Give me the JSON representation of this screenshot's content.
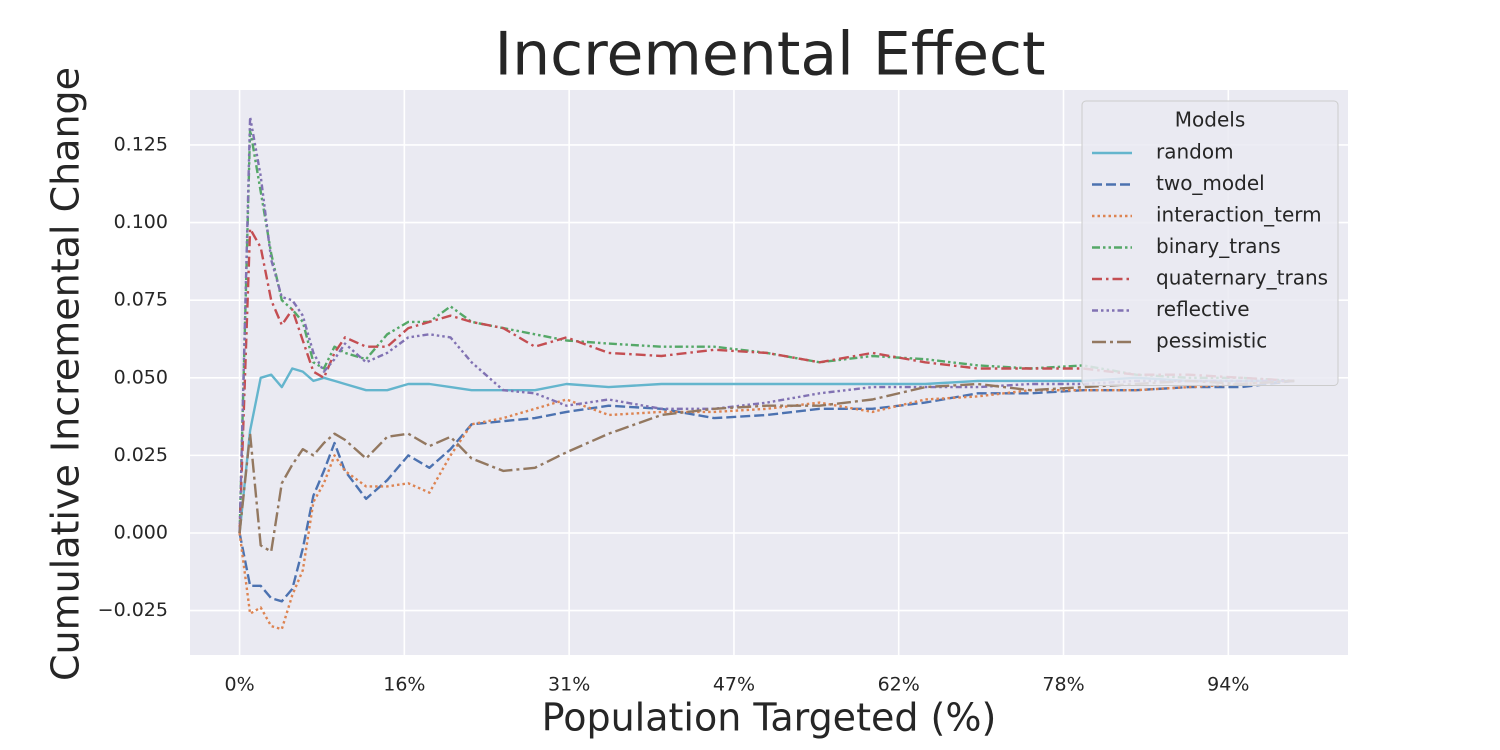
{
  "chart_data": {
    "type": "line",
    "title": "Incremental Effect",
    "xlabel": "Population Targeted (%)",
    "ylabel": "Cumulative Incremental Change",
    "legend_title": "Models",
    "legend": "upper right",
    "grid": true,
    "background": "#eaeaf2",
    "x": [
      0,
      1,
      2,
      3,
      4,
      5,
      6,
      7,
      8,
      9,
      10,
      12,
      14,
      16,
      18,
      20,
      22,
      25,
      28,
      31,
      35,
      40,
      45,
      50,
      55,
      60,
      65,
      70,
      75,
      80,
      85,
      90,
      95,
      100
    ],
    "xlim": [
      -4.7,
      105.1
    ],
    "xticks": [
      {
        "value": 0,
        "label": "0%"
      },
      {
        "value": 15.625,
        "label": "16%"
      },
      {
        "value": 31.25,
        "label": "31%"
      },
      {
        "value": 46.875,
        "label": "47%"
      },
      {
        "value": 62.5,
        "label": "62%"
      },
      {
        "value": 78.125,
        "label": "78%"
      },
      {
        "value": 93.75,
        "label": "94%"
      }
    ],
    "ylim": [
      -0.0393,
      0.1427
    ],
    "yticks": [
      {
        "value": -0.025,
        "label": "−0.025"
      },
      {
        "value": 0,
        "label": "0.000"
      },
      0.025,
      {
        "value": 0.05,
        "label": "0.050"
      },
      0.075,
      {
        "value": 0.1,
        "label": "0.100"
      },
      0.125
    ],
    "series": [
      {
        "name": "random",
        "color": "#64b5cd",
        "linestyle": "solid",
        "values": [
          0,
          0.033,
          0.05,
          0.051,
          0.047,
          0.053,
          0.052,
          0.049,
          0.05,
          0.049,
          0.048,
          0.046,
          0.046,
          0.048,
          0.048,
          0.047,
          0.046,
          0.046,
          0.046,
          0.048,
          0.047,
          0.048,
          0.048,
          0.048,
          0.048,
          0.048,
          0.048,
          0.049,
          0.049,
          0.049,
          0.05,
          0.049,
          0.049,
          0.049
        ]
      },
      {
        "name": "two_model",
        "color": "#4c72b0",
        "linestyle": "dashed",
        "values": [
          0,
          -0.017,
          -0.017,
          -0.021,
          -0.022,
          -0.018,
          -0.005,
          0.012,
          0.02,
          0.029,
          0.02,
          0.011,
          0.017,
          0.025,
          0.021,
          0.027,
          0.035,
          0.036,
          0.037,
          0.039,
          0.041,
          0.04,
          0.037,
          0.038,
          0.04,
          0.04,
          0.042,
          0.045,
          0.045,
          0.046,
          0.046,
          0.047,
          0.047,
          0.049
        ]
      },
      {
        "name": "interaction_term",
        "color": "#dd8452",
        "linestyle": "dotted",
        "values": [
          0,
          -0.026,
          -0.024,
          -0.03,
          -0.031,
          -0.02,
          -0.012,
          0.01,
          0.016,
          0.025,
          0.02,
          0.015,
          0.015,
          0.016,
          0.013,
          0.025,
          0.035,
          0.037,
          0.04,
          0.043,
          0.038,
          0.039,
          0.039,
          0.04,
          0.042,
          0.039,
          0.043,
          0.044,
          0.046,
          0.046,
          0.046,
          0.047,
          0.048,
          0.049
        ]
      },
      {
        "name": "binary_trans",
        "color": "#55a868",
        "linestyle": "dashdotdot",
        "values": [
          0,
          0.13,
          0.11,
          0.09,
          0.075,
          0.072,
          0.068,
          0.055,
          0.053,
          0.06,
          0.058,
          0.056,
          0.064,
          0.068,
          0.068,
          0.073,
          0.068,
          0.066,
          0.064,
          0.062,
          0.061,
          0.06,
          0.06,
          0.058,
          0.055,
          0.057,
          0.056,
          0.054,
          0.053,
          0.054,
          0.051,
          0.05,
          0.05,
          0.049
        ]
      },
      {
        "name": "quaternary_trans",
        "color": "#c44e52",
        "linestyle": "dashdot",
        "values": [
          0,
          0.098,
          0.092,
          0.075,
          0.067,
          0.072,
          0.062,
          0.052,
          0.05,
          0.058,
          0.063,
          0.06,
          0.06,
          0.066,
          0.068,
          0.07,
          0.068,
          0.066,
          0.06,
          0.063,
          0.058,
          0.057,
          0.059,
          0.058,
          0.055,
          0.058,
          0.055,
          0.053,
          0.053,
          0.053,
          0.051,
          0.051,
          0.05,
          0.049
        ]
      },
      {
        "name": "reflective",
        "color": "#8172b3",
        "linestyle": "dashdotdotdot",
        "values": [
          0,
          0.134,
          0.115,
          0.088,
          0.076,
          0.075,
          0.07,
          0.058,
          0.052,
          0.056,
          0.061,
          0.055,
          0.058,
          0.063,
          0.064,
          0.063,
          0.055,
          0.046,
          0.045,
          0.041,
          0.043,
          0.04,
          0.04,
          0.042,
          0.045,
          0.047,
          0.047,
          0.047,
          0.048,
          0.048,
          0.049,
          0.049,
          0.049,
          0.049
        ]
      },
      {
        "name": "pessimistic",
        "color": "#937860",
        "linestyle": "longdashdot",
        "values": [
          0,
          0.032,
          -0.004,
          -0.006,
          0.016,
          0.022,
          0.027,
          0.025,
          0.029,
          0.032,
          0.03,
          0.024,
          0.031,
          0.032,
          0.028,
          0.031,
          0.024,
          0.02,
          0.021,
          0.026,
          0.032,
          0.038,
          0.04,
          0.041,
          0.041,
          0.043,
          0.047,
          0.048,
          0.046,
          0.047,
          0.048,
          0.049,
          0.048,
          0.049
        ]
      }
    ]
  }
}
